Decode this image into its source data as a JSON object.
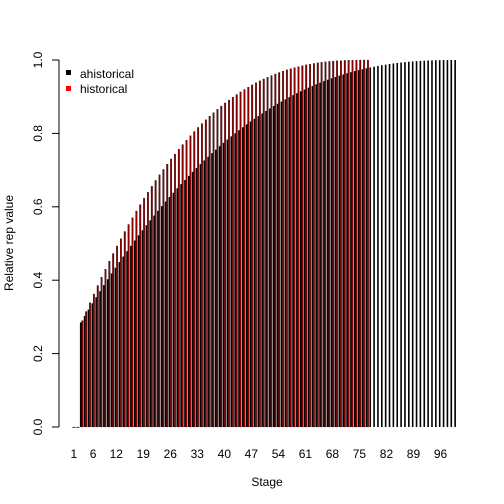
{
  "chart_data": {
    "type": "bar",
    "xlabel": "Stage",
    "ylabel": "Relative rep value",
    "ylim": [
      0,
      1
    ],
    "yticks": [
      "0.0",
      "0.2",
      "0.4",
      "0.6",
      "0.8",
      "1.0"
    ],
    "xtick_labels": [
      "1",
      "6",
      "12",
      "19",
      "26",
      "33",
      "40",
      "47",
      "54",
      "61",
      "68",
      "75",
      "82",
      "89",
      "96"
    ],
    "grid": false,
    "legend_position": "top-left",
    "series": [
      {
        "name": "ahistorical",
        "color": "#000000",
        "n_stages": 100,
        "first_positive_stage": 3,
        "value_at_first_positive": 0.285,
        "value_at_stage_50": 0.79,
        "value_at_stage_77": 0.905,
        "value_at_last_stage": 1.0
      },
      {
        "name": "historical",
        "color": "#FF0000",
        "n_stages": 77,
        "first_positive_stage": 3,
        "value_at_first_positive": 0.29,
        "value_at_stage_40": 0.86,
        "value_at_stage_60": 0.955,
        "value_at_last_stage": 1.0
      }
    ]
  }
}
